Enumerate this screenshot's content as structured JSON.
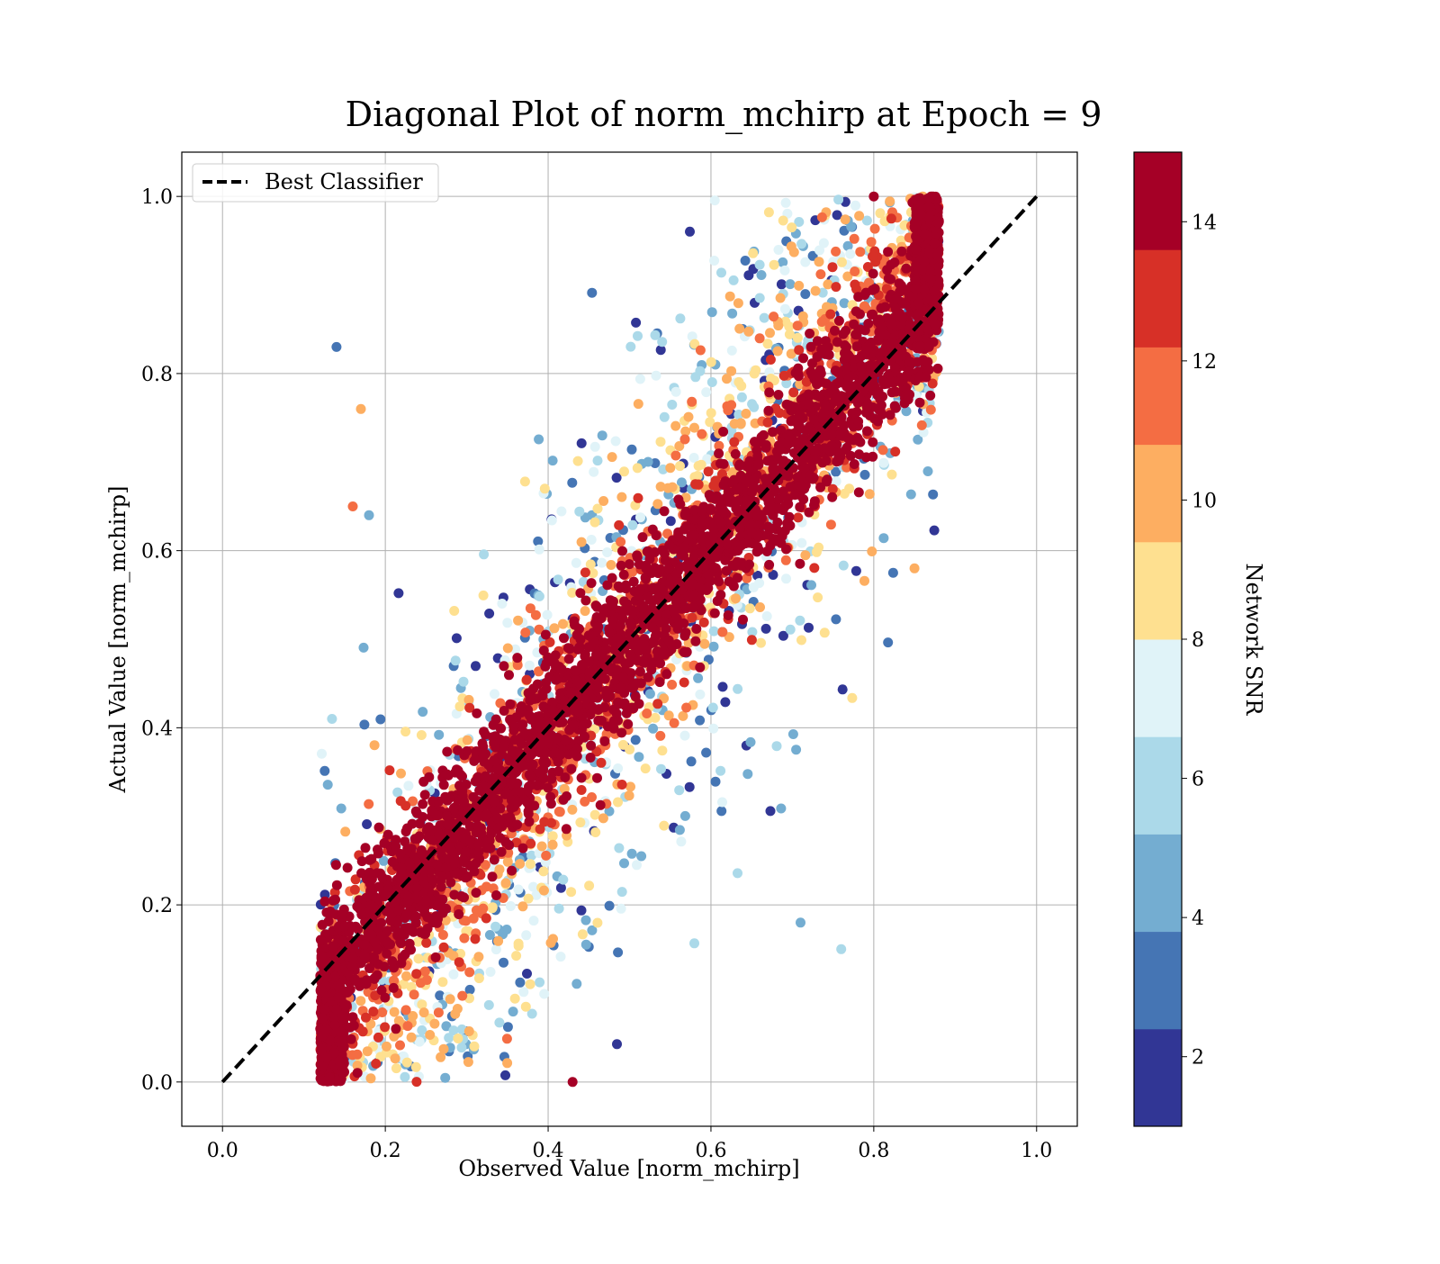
{
  "chart_data": {
    "type": "scatter",
    "title": "Diagonal Plot of norm_mchirp at Epoch = 9",
    "xlabel": "Observed Value [norm_mchirp]",
    "ylabel": "Actual Value [norm_mchirp]",
    "xlim": [
      -0.05,
      1.05
    ],
    "ylim": [
      -0.05,
      1.05
    ],
    "xticks": [
      "0.0",
      "0.2",
      "0.4",
      "0.6",
      "0.8",
      "1.0"
    ],
    "yticks": [
      "0.0",
      "0.2",
      "0.4",
      "0.6",
      "0.8",
      "1.0"
    ],
    "grid": true,
    "legend": {
      "placement": "top-left",
      "entries": [
        "Best Classifier"
      ]
    },
    "reference_line": {
      "name": "Best Classifier",
      "style": "dashed",
      "color": "#000000",
      "from": [
        0,
        0
      ],
      "to": [
        1,
        1
      ]
    },
    "colorbar": {
      "label": "Network SNR",
      "range": [
        1,
        15
      ],
      "ticks": [
        "2",
        "4",
        "6",
        "8",
        "10",
        "12",
        "14"
      ],
      "tick_values": [
        2,
        4,
        6,
        8,
        10,
        12,
        14
      ],
      "colors": [
        "#313695",
        "#4575b4",
        "#74add1",
        "#abd9e9",
        "#e0f3f8",
        "#fee090",
        "#fdae61",
        "#f46d43",
        "#d73027",
        "#a50026"
      ]
    },
    "series": [
      {
        "color_by": "Network SNR",
        "point_cloud": {
          "x_range": [
            0.12,
            0.88
          ],
          "y_range": [
            0.0,
            1.0
          ],
          "trend": "y ≈ x, wider spread at low SNR",
          "approx_points": 6000
        },
        "points": [
          {
            "x": 0.14,
            "y": 0.83,
            "snr": 3.5
          },
          {
            "x": 0.18,
            "y": 0.64,
            "snr": 4.5
          },
          {
            "x": 0.17,
            "y": 0.76,
            "snr": 10.5
          },
          {
            "x": 0.16,
            "y": 0.65,
            "snr": 11.5
          },
          {
            "x": 0.76,
            "y": 0.15,
            "snr": 6.5
          },
          {
            "x": 0.71,
            "y": 0.18,
            "snr": 5.0
          },
          {
            "x": 0.85,
            "y": 0.58,
            "snr": 9.5
          },
          {
            "x": 0.12,
            "y": 0.06,
            "snr": 14.5
          },
          {
            "x": 0.43,
            "y": 0.0,
            "snr": 14.5
          },
          {
            "x": 0.8,
            "y": 1.0,
            "snr": 14.5
          }
        ]
      }
    ]
  }
}
